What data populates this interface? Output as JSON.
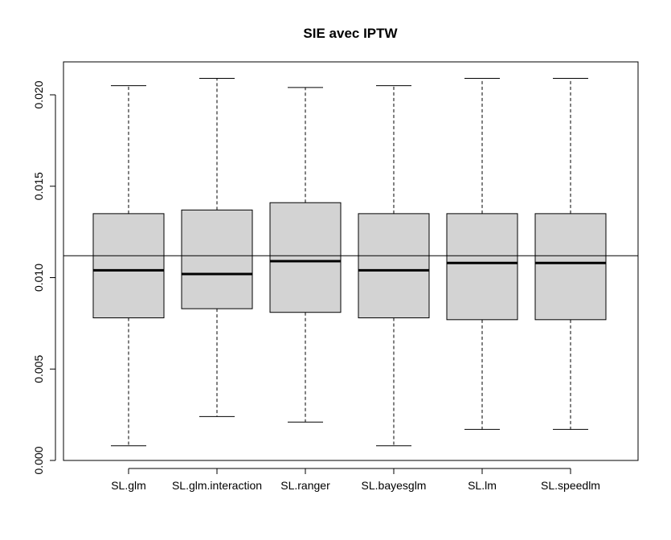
{
  "chart_data": {
    "type": "boxplot",
    "title": "SIE avec IPTW",
    "xlabel": "",
    "ylabel": "",
    "ylim": [
      0,
      0.0222
    ],
    "y_ticks": [
      0.0,
      0.005,
      0.01,
      0.015,
      0.02
    ],
    "y_tick_labels": [
      "0.000",
      "0.005",
      "0.010",
      "0.015",
      "0.020"
    ],
    "reference_line": 0.0112,
    "box_fill": "#d3d3d3",
    "categories": [
      "SL.glm",
      "SL.glm.interaction",
      "SL.ranger",
      "SL.bayesglm",
      "SL.lm",
      "SL.speedlm"
    ],
    "boxes": [
      {
        "name": "SL.glm",
        "min": 0.0008,
        "q1": 0.0078,
        "median": 0.0104,
        "q3": 0.0135,
        "max": 0.0205
      },
      {
        "name": "SL.glm.interaction",
        "min": 0.0024,
        "q1": 0.0083,
        "median": 0.0102,
        "q3": 0.0137,
        "max": 0.0209
      },
      {
        "name": "SL.ranger",
        "min": 0.0021,
        "q1": 0.0081,
        "median": 0.0109,
        "q3": 0.0141,
        "max": 0.0204
      },
      {
        "name": "SL.bayesglm",
        "min": 0.0008,
        "q1": 0.0078,
        "median": 0.0104,
        "q3": 0.0135,
        "max": 0.0205
      },
      {
        "name": "SL.lm",
        "min": 0.0017,
        "q1": 0.0077,
        "median": 0.0108,
        "q3": 0.0135,
        "max": 0.0209
      },
      {
        "name": "SL.speedlm",
        "min": 0.0017,
        "q1": 0.0077,
        "median": 0.0108,
        "q3": 0.0135,
        "max": 0.0209
      }
    ]
  }
}
